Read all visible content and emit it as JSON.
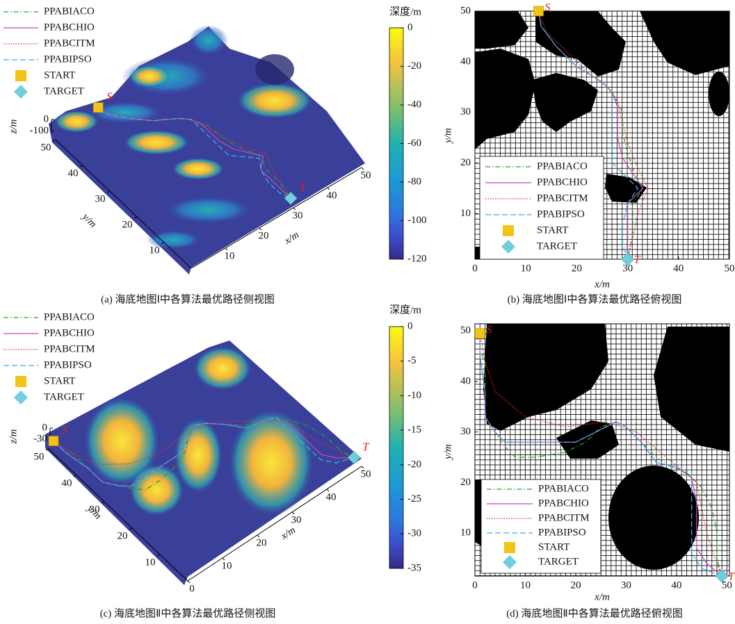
{
  "chart_data": [
    {
      "type": "surface",
      "caption": "(a) 海底地图Ⅰ中各算法最优路径侧视图",
      "xlabel": "x/m",
      "ylabel": "y/m",
      "zlabel": "z/m",
      "xlim": [
        0,
        50
      ],
      "ylim": [
        0,
        50
      ],
      "zlim": [
        -120,
        0
      ],
      "xticks": [
        10,
        20,
        30,
        40,
        50
      ],
      "yticks": [
        10,
        20,
        30,
        40,
        50
      ],
      "zticks": [
        0,
        -100
      ],
      "colorbar": {
        "label": "深度/m",
        "lim": [
          -120,
          0
        ],
        "ticks": [
          0,
          -20,
          -40,
          -60,
          -80,
          -100,
          -120
        ]
      }
    },
    {
      "type": "grid-map",
      "caption": "(b) 海底地图Ⅰ中各算法最优路径俯视图",
      "xlabel": "x/m",
      "ylabel": "y/m",
      "xlim": [
        0,
        50
      ],
      "ylim": [
        1,
        50
      ],
      "xticks": [
        0,
        10,
        20,
        30,
        40,
        50
      ],
      "yticks": [
        10,
        20,
        30,
        40,
        50
      ],
      "series": [
        {
          "name": "PPABIACO",
          "color": "#2ca02c",
          "dash": "dash-dot",
          "x": [
            12.5,
            13,
            16,
            20,
            25,
            27,
            28,
            29,
            29,
            30,
            31,
            33,
            31,
            31,
            30
          ],
          "y": [
            50,
            47,
            43,
            39,
            36,
            34,
            32,
            30,
            26,
            22,
            19,
            15,
            12,
            6,
            1
          ]
        },
        {
          "name": "PPABCHIO",
          "color": "#cc44bb",
          "dash": "solid",
          "x": [
            12.5,
            13,
            16,
            20,
            25,
            27,
            28,
            28,
            29,
            31,
            33,
            30,
            30,
            30
          ],
          "y": [
            50,
            47,
            43,
            39,
            36,
            34,
            31,
            25,
            21,
            18,
            15,
            12,
            6,
            1
          ]
        },
        {
          "name": "PPABCITM",
          "color": "#e03030",
          "dash": "dotted",
          "x": [
            12.5,
            14,
            18,
            22,
            26,
            28,
            29,
            30,
            32,
            34,
            32,
            31,
            30
          ],
          "y": [
            50,
            46,
            42,
            38,
            35,
            32,
            28,
            24,
            19,
            15,
            10,
            5,
            1
          ]
        },
        {
          "name": "PPABIPSO",
          "color": "#30b4e4",
          "dash": "dashed",
          "x": [
            12.5,
            13,
            16,
            20,
            25,
            27,
            27,
            27,
            30,
            32,
            30,
            29,
            29,
            30
          ],
          "y": [
            50,
            47,
            43,
            39,
            36,
            34,
            30,
            20,
            17,
            15,
            12,
            8,
            4,
            1
          ]
        }
      ],
      "start": {
        "name": "START",
        "label": "S",
        "color": "#f2c417",
        "x": 12.5,
        "y": 50
      },
      "target": {
        "name": "TARGET",
        "label": "T",
        "color": "#6fcfdc",
        "x": 30,
        "y": 1
      }
    },
    {
      "type": "surface",
      "caption": "(c) 海底地图Ⅱ中各算法最优路径侧视图",
      "xlabel": "x/m",
      "ylabel": "y/m",
      "zlabel": "z/m",
      "xlim": [
        0,
        50
      ],
      "ylim": [
        0,
        50
      ],
      "zlim": [
        -35,
        0
      ],
      "xticks": [
        0,
        10,
        20,
        30,
        40,
        50
      ],
      "yticks": [
        10,
        20,
        30,
        40,
        50
      ],
      "zticks": [
        0,
        -30
      ],
      "colorbar": {
        "label": "深度/m",
        "lim": [
          -35,
          0
        ],
        "ticks": [
          0,
          -5,
          -10,
          -15,
          -20,
          -25,
          -30,
          -35
        ]
      }
    },
    {
      "type": "grid-map",
      "caption": "(d) 海底地图Ⅱ中各算法最优路径俯视图",
      "xlabel": "x/m",
      "ylabel": "y/m",
      "xlim": [
        0,
        50.5
      ],
      "ylim": [
        1.5,
        51.4
      ],
      "xticks": [
        0,
        10,
        20,
        30,
        40,
        50
      ],
      "yticks": [
        10,
        20,
        30,
        40,
        50
      ],
      "series": [
        {
          "name": "PPABIACO",
          "color": "#2ca02c",
          "dash": "dash-dot",
          "x": [
            1,
            1,
            2,
            2,
            2,
            4,
            6,
            7,
            8,
            12,
            18,
            22,
            25,
            28,
            30,
            32,
            36,
            39,
            42,
            45,
            47,
            48,
            48,
            49
          ],
          "y": [
            49.5,
            46,
            44,
            38,
            33,
            30,
            27,
            26,
            25,
            25,
            26,
            28,
            31,
            32,
            31,
            29,
            25,
            23,
            22,
            19,
            15,
            10,
            5,
            1.5
          ]
        },
        {
          "name": "PPABCHIO",
          "color": "#cc44bb",
          "dash": "solid",
          "x": [
            1,
            1,
            2,
            2,
            4,
            6,
            12,
            20,
            24,
            28,
            30,
            33,
            36,
            40,
            43,
            44,
            44,
            46,
            49
          ],
          "y": [
            49.5,
            45,
            38,
            33,
            30,
            28,
            28,
            28,
            30,
            32,
            31,
            28,
            24,
            23,
            21,
            16,
            7,
            4,
            1.5
          ]
        },
        {
          "name": "PPABCITM",
          "color": "#e03030",
          "dash": "dotted",
          "x": [
            1,
            2,
            4,
            10,
            18,
            26,
            32,
            38,
            44,
            46,
            48,
            49
          ],
          "y": [
            49.5,
            44,
            38,
            33,
            31,
            32,
            30,
            25,
            20,
            10,
            4,
            1.5
          ]
        },
        {
          "name": "PPABIPSO",
          "color": "#30b4e4",
          "dash": "dashed",
          "x": [
            1,
            1,
            2,
            2,
            4,
            6,
            14,
            20,
            24,
            28,
            30,
            33,
            36,
            40,
            43,
            43,
            43,
            45,
            49
          ],
          "y": [
            49.5,
            45,
            38,
            33,
            30,
            28,
            28,
            28,
            30,
            32,
            31,
            28,
            24,
            23,
            22,
            16,
            6,
            3,
            1.5
          ]
        }
      ],
      "start": {
        "name": "START",
        "label": "S",
        "color": "#f2c417",
        "x": 1,
        "y": 49.5
      },
      "target": {
        "name": "TARGET",
        "label": "T",
        "color": "#6fcfdc",
        "x": 49,
        "y": 1.5
      }
    }
  ]
}
